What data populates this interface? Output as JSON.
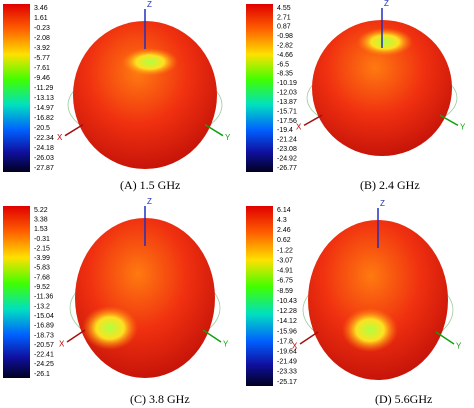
{
  "panels": [
    {
      "scale": [
        "3.46",
        "1.61",
        "-0.23",
        "-2.08",
        "-3.92",
        "-5.77",
        "-7.61",
        "-9.46",
        "-11.29",
        "-13.13",
        "-14.97",
        "-16.82",
        "-20.5",
        "-22.34",
        "-24.18",
        "-26.03",
        "-27.87"
      ],
      "axes": {
        "z": "Z",
        "x": "X",
        "y": "Y"
      },
      "caption": "(A) 1.5 GHz"
    },
    {
      "scale": [
        "4.55",
        "2.71",
        "0.87",
        "-0.98",
        "-2.82",
        "-4.66",
        "-6.5",
        "-8.35",
        "-10.19",
        "-12.03",
        "-13.87",
        "-15.71",
        "-17.56",
        "-19.4",
        "-21.24",
        "-23.08",
        "-24.92",
        "-26.77"
      ],
      "axes": {
        "z": "Z",
        "x": "X",
        "y": "Y"
      },
      "caption": "(B) 2.4 GHz"
    },
    {
      "scale": [
        "5.22",
        "3.38",
        "1.53",
        "-0.31",
        "-2.15",
        "-3.99",
        "-5.83",
        "-7.68",
        "-9.52",
        "-11.36",
        "-13.2",
        "-15.04",
        "-16.89",
        "-18.73",
        "-20.57",
        "-22.41",
        "-24.25",
        "-26.1"
      ],
      "axes": {
        "z": "Z",
        "x": "X",
        "y": "Y"
      },
      "caption": "(C) 3.8 GHz"
    },
    {
      "scale": [
        "6.14",
        "4.3",
        "2.46",
        "0.62",
        "-1.22",
        "-3.07",
        "-4.91",
        "-6.75",
        "-8.59",
        "-10.43",
        "-12.28",
        "-14.12",
        "-15.96",
        "-17.8",
        "-19.64",
        "-21.49",
        "-23.33",
        "-25.17"
      ],
      "axes": {
        "z": "Z",
        "x": "X",
        "y": "Y"
      },
      "caption": "(D) 5.6GHz"
    }
  ]
}
